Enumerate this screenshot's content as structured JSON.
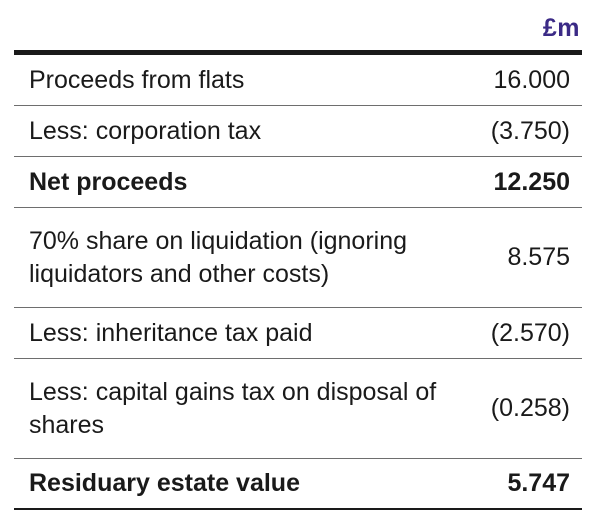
{
  "header": {
    "unit": "£m"
  },
  "rows": [
    {
      "label": "Proceeds from flats",
      "value": "16.000"
    },
    {
      "label": "Less: corporation tax",
      "value": "(3.750)"
    },
    {
      "label": "Net proceeds",
      "value": "12.250"
    },
    {
      "label": "70% share on liquidation (ignoring liquidators and other costs)",
      "value": "8.575"
    },
    {
      "label": "Less: inheritance tax paid",
      "value": "(2.570)"
    },
    {
      "label": "Less: capital gains tax on disposal of shares",
      "value": "(0.258)"
    },
    {
      "label": "Residuary estate value",
      "value": "5.747"
    }
  ],
  "colors": {
    "unit_accent": "#3b2a86",
    "text": "#1a1a1a"
  }
}
